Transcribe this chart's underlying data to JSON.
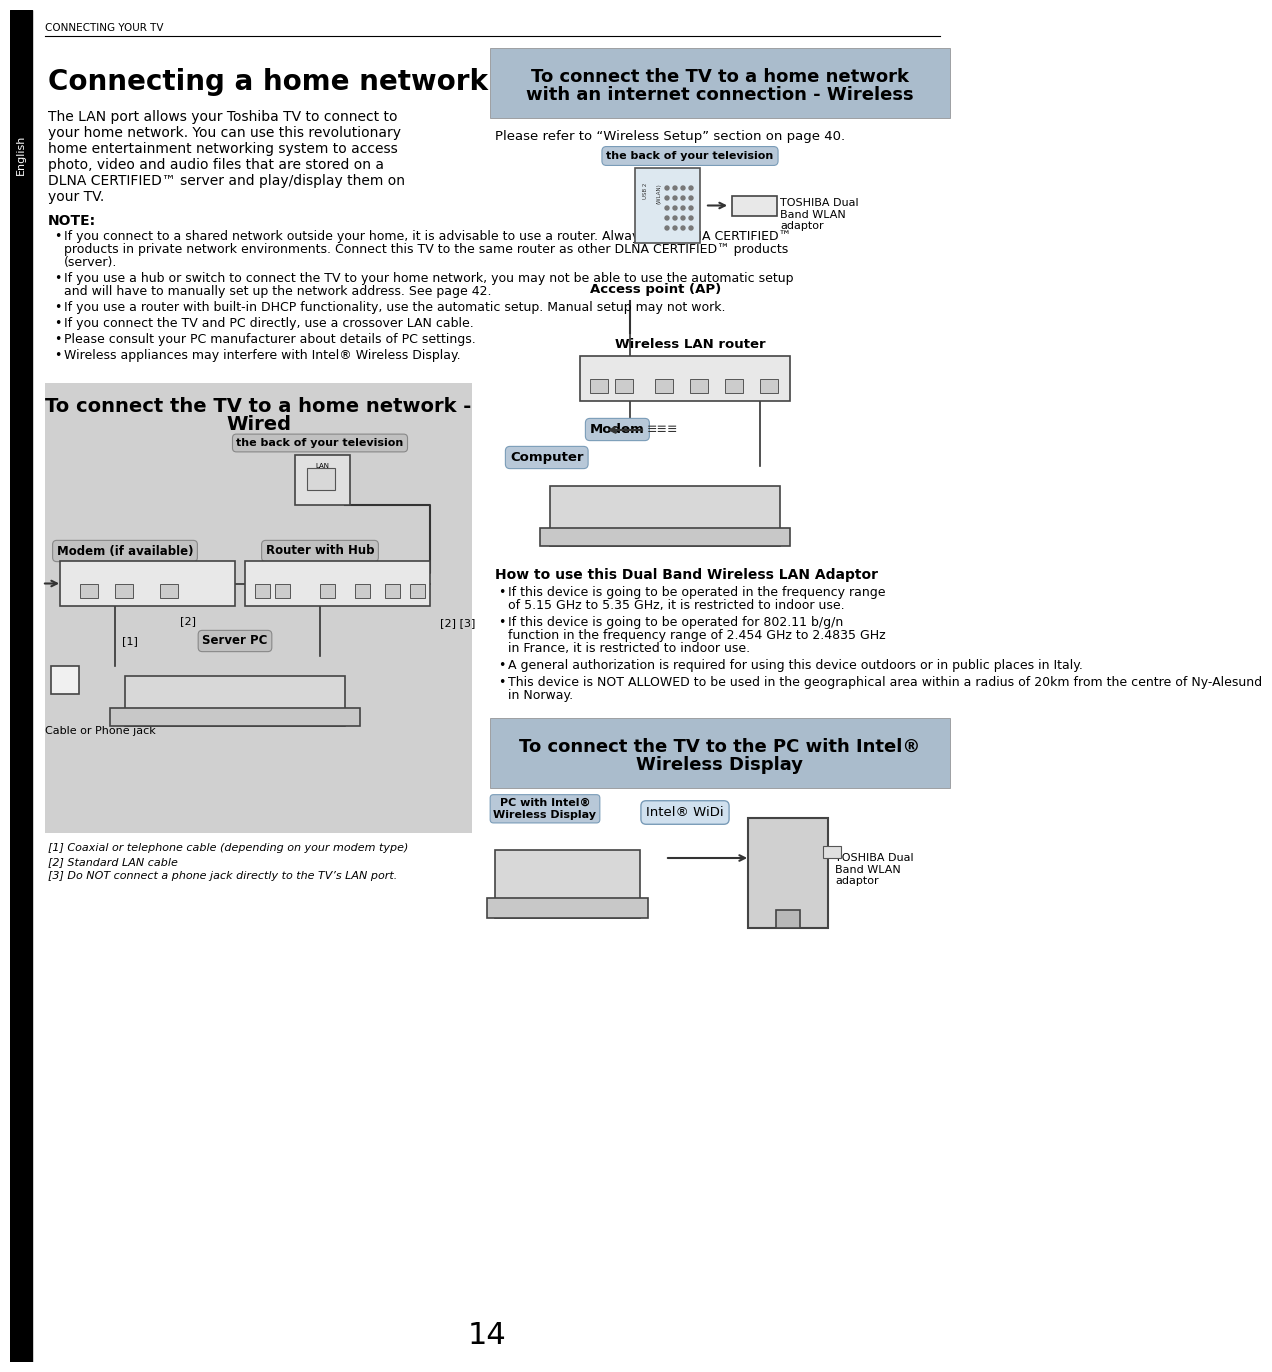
{
  "page_num": "14",
  "header_text": "CONNECTING YOUR TV",
  "sidebar_text": "English",
  "main_title": "Connecting a home network",
  "main_body_lines": [
    "The LAN port allows your Toshiba TV to connect to",
    "your home network. You can use this revolutionary",
    "home entertainment networking system to access",
    "photo, video and audio files that are stored on a",
    "DLNA CERTIFIED™ server and play/display them on",
    "your TV."
  ],
  "note_title": "NOTE:",
  "note_bullets": [
    [
      "If you connect to a shared network outside your home, it is advisable to use a router. Always use DLNA CERTIFIED™",
      "products in private network environments. Connect this TV to the same router as other DLNA CERTIFIED™ products",
      "(server)."
    ],
    [
      "If you use a hub or switch to connect the TV to your home network, you may not be able to use the automatic setup",
      "and will have to manually set up the network address. See page 42."
    ],
    [
      "If you use a router with built-in DHCP functionality, use the automatic setup. Manual setup may not work."
    ],
    [
      "If you connect the TV and PC directly, use a crossover LAN cable."
    ],
    [
      "Please consult your PC manufacturer about details of PC settings."
    ],
    [
      "Wireless appliances may interfere with Intel® Wireless Display."
    ]
  ],
  "wired_box_title_line1": "To connect the TV to a home network -",
  "wired_box_title_line2": "Wired",
  "wired_box_bg": "#d0d0d0",
  "wired_back_tv_label": "the back of your television",
  "wired_modem_label": "Modem (if available)",
  "wired_router_label": "Router with Hub",
  "wired_server_label": "Server PC",
  "wired_cable_label": "Cable or Phone jack",
  "wired_fn1": "[1] Coaxial or telephone cable (depending on your modem type)",
  "wired_fn2": "[2] Standard LAN cable",
  "wired_fn3": "[3] Do NOT connect a phone jack directly to the TV’s LAN port.",
  "wireless_box_title_line1": "To connect the TV to a home network",
  "wireless_box_title_line2": "with an internet connection - Wireless",
  "wireless_box_bg": "#c0cfe0",
  "wireless_note": "Please refer to “Wireless Setup” section on page 40.",
  "wireless_back_tv_label": "the back of your television",
  "wireless_toshiba_label": "TOSHIBA Dual\nBand WLAN\nadaptor",
  "wireless_access_label": "Access point (AP)",
  "wireless_router_label": "Wireless LAN router",
  "wireless_modem_label": "Modem",
  "wireless_computer_label": "Computer",
  "dual_band_title": "How to use this Dual Band Wireless LAN Adaptor",
  "dual_band_bullets": [
    [
      "If this device is going to be operated in the frequency range",
      "of 5.15 GHz to 5.35 GHz, it is restricted to indoor use."
    ],
    [
      "If this device is going to be operated for 802.11 b/g/n",
      "function in the frequency range of 2.454 GHz to 2.4835 GHz",
      "in France, it is restricted to indoor use."
    ],
    [
      "A general authorization is required for using this device outdoors or in public places in Italy."
    ],
    [
      "This device is NOT ALLOWED to be used in the geographical area within a radius of 20km from the centre of Ny-Alesund",
      "in Norway."
    ]
  ],
  "intel_box_title_line1": "To connect the TV to the PC with Intel®",
  "intel_box_title_line2": "Wireless Display",
  "intel_box_bg": "#c0cfe0",
  "intel_pc_label": "PC with Intel®\nWireless Display",
  "intel_widi_label": "Intel® WiDi",
  "intel_toshiba_label": "TOSHIBA Dual\nBand WLAN\nadaptor",
  "bg_color": "#ffffff",
  "sidebar_bg": "#000000",
  "sidebar_text_color": "#ffffff"
}
